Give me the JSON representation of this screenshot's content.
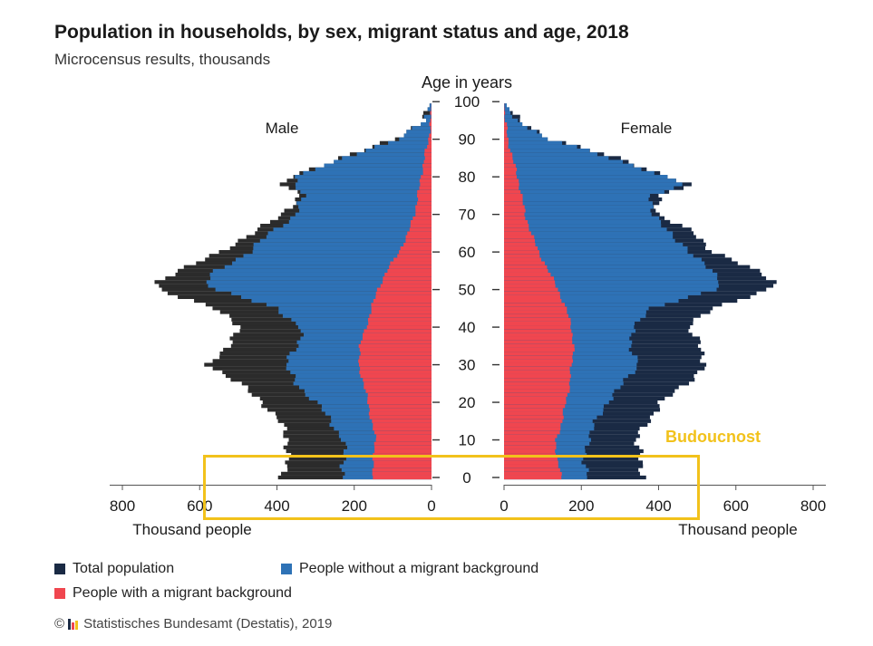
{
  "header": {
    "title": "Population in households, by sex, migrant status and age, 2018",
    "subtitle": "Microcensus results, thousands"
  },
  "annotation": {
    "label": "Budoucnost",
    "color": "#f2c21b"
  },
  "legend": {
    "total": "Total population",
    "without": "People without a migrant background",
    "with": "People with a migrant background"
  },
  "source": {
    "copyright": "©",
    "text": "Statistisches Bundesamt (Destatis), 2019"
  },
  "colors": {
    "total": "#1a2a44",
    "total_male": "#2b2b2b",
    "without": "#2e72b6",
    "with": "#f0464f",
    "logo": [
      "#1a2a44",
      "#f0464f",
      "#f2c21b"
    ]
  },
  "chart_data": {
    "type": "population-pyramid",
    "title": "Population in households, by sex, migrant status and age, 2018",
    "subtitle": "Microcensus results, thousands",
    "age_axis_label": "Age in years",
    "age_ticks": [
      0,
      10,
      20,
      30,
      40,
      50,
      60,
      70,
      80,
      90,
      100
    ],
    "xlabel": "Thousand people",
    "x_ticks": [
      800,
      600,
      400,
      200,
      0
    ],
    "xlim": [
      0,
      800
    ],
    "panels": [
      "Male",
      "Female"
    ],
    "series_order": [
      "Total population",
      "People without a migrant background",
      "People with a migrant background"
    ],
    "anchors": {
      "ages": [
        0,
        5,
        10,
        15,
        20,
        25,
        30,
        35,
        40,
        45,
        50,
        52,
        55,
        60,
        65,
        70,
        75,
        78,
        80,
        85,
        90,
        95,
        100
      ],
      "male": {
        "total": [
          385,
          375,
          370,
          395,
          435,
          500,
          575,
          530,
          490,
          565,
          700,
          710,
          660,
          540,
          470,
          380,
          345,
          380,
          360,
          240,
          90,
          25,
          0
        ],
        "without": [
          230,
          225,
          230,
          260,
          300,
          350,
          380,
          345,
          340,
          400,
          560,
          580,
          560,
          470,
          420,
          350,
          330,
          360,
          350,
          230,
          90,
          25,
          0
        ],
        "with": [
          155,
          150,
          145,
          155,
          165,
          175,
          190,
          185,
          170,
          155,
          140,
          130,
          115,
          85,
          60,
          45,
          35,
          30,
          28,
          18,
          8,
          2,
          0
        ]
      },
      "female": {
        "total": [
          365,
          350,
          345,
          370,
          410,
          470,
          525,
          505,
          480,
          535,
          690,
          705,
          650,
          545,
          490,
          400,
          400,
          480,
          430,
          290,
          125,
          35,
          0
        ],
        "without": [
          215,
          210,
          215,
          240,
          265,
          310,
          345,
          330,
          330,
          385,
          540,
          560,
          545,
          475,
          435,
          380,
          385,
          465,
          415,
          280,
          120,
          35,
          0
        ],
        "with": [
          150,
          135,
          135,
          150,
          160,
          170,
          175,
          180,
          175,
          160,
          140,
          130,
          115,
          90,
          70,
          55,
          45,
          40,
          35,
          22,
          10,
          3,
          0
        ]
      }
    }
  }
}
